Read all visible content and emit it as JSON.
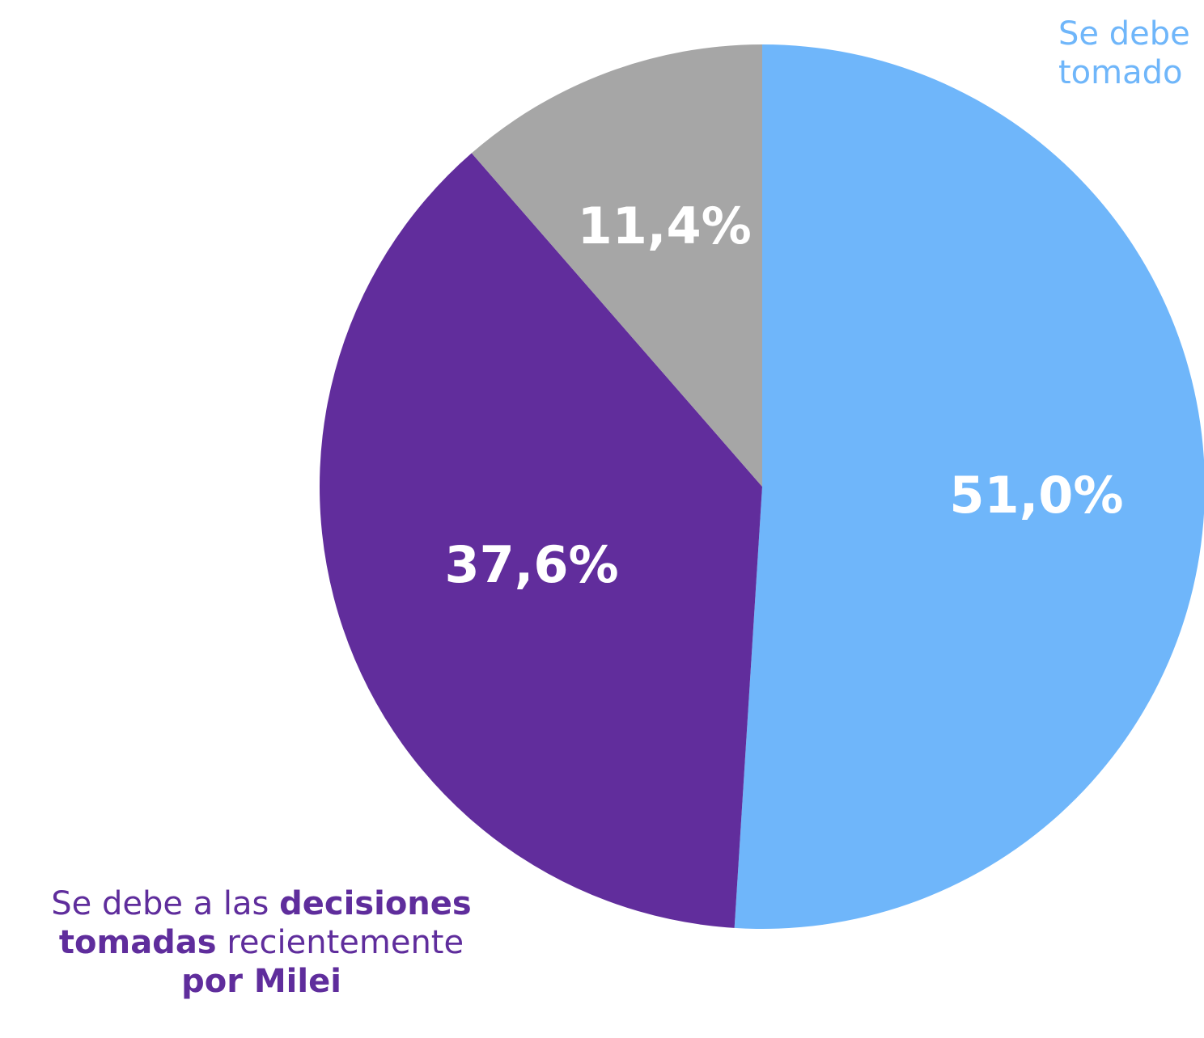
{
  "chart_data": {
    "type": "pie",
    "slices": [
      {
        "value": 51.0,
        "label": "51,0%",
        "color": "#6fb6fa"
      },
      {
        "value": 37.6,
        "label": "37,6%",
        "color": "#612d9c"
      },
      {
        "value": 11.4,
        "label": "11,4%",
        "color": "#a6a6a6"
      }
    ],
    "start_angle": "12 o'clock",
    "direction": "clockwise"
  },
  "annotations": {
    "bottom_left": {
      "part1": "Se debe a las ",
      "part2": "decisiones",
      "part3": "tomadas",
      "part4": " recientemente",
      "part5": "por Milei"
    },
    "top_right": {
      "line1": "Se debe",
      "line2": "tomado"
    }
  }
}
